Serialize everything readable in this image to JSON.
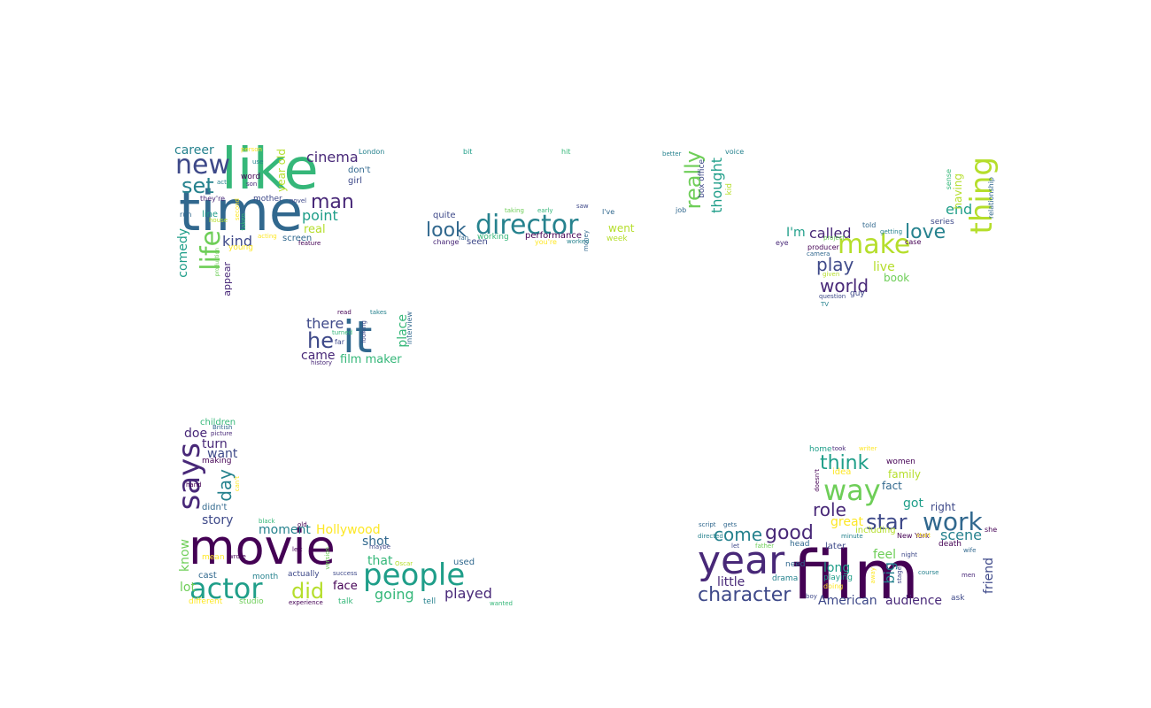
{
  "palette": [
    "#440154",
    "#482878",
    "#3e4989",
    "#31688e",
    "#26828e",
    "#1f9e89",
    "#35b779",
    "#6ece58",
    "#b5de2b",
    "#fde725"
  ],
  "words": [
    {
      "text": "time",
      "color": "#31688e"
    },
    {
      "text": "like",
      "color": "#35b779"
    },
    {
      "text": "new",
      "color": "#3e4989"
    },
    {
      "text": "set",
      "color": "#26828e"
    },
    {
      "text": "career",
      "color": "#26828e"
    },
    {
      "text": "man",
      "color": "#482878"
    },
    {
      "text": "cinema",
      "color": "#482878"
    },
    {
      "text": "point",
      "color": "#1f9e89"
    },
    {
      "text": "real",
      "color": "#b5de2b"
    },
    {
      "text": "kind",
      "color": "#3e4989"
    },
    {
      "text": "life",
      "color": "#6ece58"
    },
    {
      "text": "comedy",
      "color": "#1f9e89"
    },
    {
      "text": "screen",
      "color": "#31688e"
    },
    {
      "text": "year old",
      "color": "#b5de2b"
    },
    {
      "text": "don't",
      "color": "#31688e"
    },
    {
      "text": "girl",
      "color": "#3e4989"
    },
    {
      "text": "word",
      "color": "#440154"
    },
    {
      "text": "mother",
      "color": "#3e4989"
    },
    {
      "text": "line",
      "color": "#1f9e89"
    },
    {
      "text": "young",
      "color": "#fde725"
    },
    {
      "text": "appear",
      "color": "#482878"
    },
    {
      "text": "London",
      "color": "#26828e"
    },
    {
      "text": "person",
      "color": "#fde725"
    },
    {
      "text": "use",
      "color": "#26828e"
    },
    {
      "text": "act",
      "color": "#26828e"
    },
    {
      "text": "son",
      "color": "#482878"
    },
    {
      "text": "they're",
      "color": "#482878"
    },
    {
      "text": "run",
      "color": "#31688e"
    },
    {
      "text": "house",
      "color": "#b5de2b"
    },
    {
      "text": "second",
      "color": "#fde725"
    },
    {
      "text": "taken",
      "color": "#35b779"
    },
    {
      "text": "novel",
      "color": "#3e4989"
    },
    {
      "text": "acting",
      "color": "#fde725"
    },
    {
      "text": "feature",
      "color": "#440154"
    },
    {
      "text": "production",
      "color": "#6ece58"
    },
    {
      "text": "director",
      "color": "#26828e"
    },
    {
      "text": "look",
      "color": "#31688e"
    },
    {
      "text": "went",
      "color": "#b5de2b"
    },
    {
      "text": "quite",
      "color": "#3e4989"
    },
    {
      "text": "performance",
      "color": "#440154"
    },
    {
      "text": "working",
      "color": "#35b779"
    },
    {
      "text": "seen",
      "color": "#3e4989"
    },
    {
      "text": "week",
      "color": "#b5de2b"
    },
    {
      "text": "change",
      "color": "#482878"
    },
    {
      "text": "you're",
      "color": "#fde725"
    },
    {
      "text": "worked",
      "color": "#26828e"
    },
    {
      "text": "money",
      "color": "#31688e"
    },
    {
      "text": "taking",
      "color": "#6ece58"
    },
    {
      "text": "early",
      "color": "#35b779"
    },
    {
      "text": "saw",
      "color": "#3e4989"
    },
    {
      "text": "I've",
      "color": "#31688e"
    },
    {
      "text": "fan",
      "color": "#31688e"
    },
    {
      "text": "bit",
      "color": "#1f9e89"
    },
    {
      "text": "hit",
      "color": "#35b779"
    },
    {
      "text": "really",
      "color": "#6ece58"
    },
    {
      "text": "thought",
      "color": "#1f9e89"
    },
    {
      "text": "box office",
      "color": "#3e4989"
    },
    {
      "text": "kid",
      "color": "#b5de2b"
    },
    {
      "text": "job",
      "color": "#31688e"
    },
    {
      "text": "better",
      "color": "#26828e"
    },
    {
      "text": "voice",
      "color": "#26828e"
    },
    {
      "text": "thing",
      "color": "#b5de2b"
    },
    {
      "text": "make",
      "color": "#b5de2b"
    },
    {
      "text": "love",
      "color": "#26828e"
    },
    {
      "text": "end",
      "color": "#1f9e89"
    },
    {
      "text": "having",
      "color": "#b5de2b"
    },
    {
      "text": "sense",
      "color": "#35b779"
    },
    {
      "text": "relationship",
      "color": "#31688e"
    },
    {
      "text": "I'm",
      "color": "#1f9e89"
    },
    {
      "text": "called",
      "color": "#482878"
    },
    {
      "text": "play",
      "color": "#3e4989"
    },
    {
      "text": "world",
      "color": "#482878"
    },
    {
      "text": "live",
      "color": "#b5de2b"
    },
    {
      "text": "book",
      "color": "#6ece58"
    },
    {
      "text": "told",
      "color": "#31688e"
    },
    {
      "text": "getting",
      "color": "#26828e"
    },
    {
      "text": "series",
      "color": "#3e4989"
    },
    {
      "text": "project",
      "color": "#6ece58"
    },
    {
      "text": "case",
      "color": "#440154"
    },
    {
      "text": "eye",
      "color": "#482878"
    },
    {
      "text": "producer",
      "color": "#440154"
    },
    {
      "text": "camera",
      "color": "#31688e"
    },
    {
      "text": "given",
      "color": "#b5de2b"
    },
    {
      "text": "question",
      "color": "#3e4989"
    },
    {
      "text": "guy",
      "color": "#3e4989"
    },
    {
      "text": "TV",
      "color": "#26828e"
    },
    {
      "text": "it",
      "color": "#31688e"
    },
    {
      "text": "he",
      "color": "#3e4989"
    },
    {
      "text": "there",
      "color": "#3e4989"
    },
    {
      "text": "came",
      "color": "#482878"
    },
    {
      "text": "film maker",
      "color": "#35b779"
    },
    {
      "text": "place",
      "color": "#35b779"
    },
    {
      "text": "interview",
      "color": "#31688e"
    },
    {
      "text": "read",
      "color": "#440154"
    },
    {
      "text": "takes",
      "color": "#26828e"
    },
    {
      "text": "turned",
      "color": "#35b779"
    },
    {
      "text": "far",
      "color": "#3e4989"
    },
    {
      "text": "looking",
      "color": "#3e4989"
    },
    {
      "text": "history",
      "color": "#482878"
    },
    {
      "text": "says",
      "color": "#482878"
    },
    {
      "text": "movie",
      "color": "#440154"
    },
    {
      "text": "actor",
      "color": "#1f9e89"
    },
    {
      "text": "did",
      "color": "#b5de2b"
    },
    {
      "text": "people",
      "color": "#1f9e89"
    },
    {
      "text": "played",
      "color": "#482878"
    },
    {
      "text": "going",
      "color": "#35b779"
    },
    {
      "text": "that",
      "color": "#35b779"
    },
    {
      "text": "face",
      "color": "#440154"
    },
    {
      "text": "shot",
      "color": "#31688e"
    },
    {
      "text": "Hollywood",
      "color": "#fde725"
    },
    {
      "text": "moment",
      "color": "#26828e"
    },
    {
      "text": "story",
      "color": "#3e4989"
    },
    {
      "text": "day",
      "color": "#26828e"
    },
    {
      "text": "want",
      "color": "#3e4989"
    },
    {
      "text": "turn",
      "color": "#482878"
    },
    {
      "text": "doe",
      "color": "#482878"
    },
    {
      "text": "children",
      "color": "#35b779"
    },
    {
      "text": "British",
      "color": "#31688e"
    },
    {
      "text": "picture",
      "color": "#482878"
    },
    {
      "text": "making",
      "color": "#440154"
    },
    {
      "text": "hand",
      "color": "#440154"
    },
    {
      "text": "can't",
      "color": "#fde725"
    },
    {
      "text": "didn't",
      "color": "#31688e"
    },
    {
      "text": "mean",
      "color": "#fde725"
    },
    {
      "text": "wrote",
      "color": "#440154"
    },
    {
      "text": "black",
      "color": "#35b779"
    },
    {
      "text": "old",
      "color": "#440154"
    },
    {
      "text": "know",
      "color": "#6ece58"
    },
    {
      "text": "cast",
      "color": "#31688e"
    },
    {
      "text": "lot",
      "color": "#6ece58"
    },
    {
      "text": "month",
      "color": "#26828e"
    },
    {
      "text": "actually",
      "color": "#3e4989"
    },
    {
      "text": "left",
      "color": "#440154"
    },
    {
      "text": "version",
      "color": "#6ece58"
    },
    {
      "text": "maybe",
      "color": "#3e4989"
    },
    {
      "text": "success",
      "color": "#3e4989"
    },
    {
      "text": "Oscar",
      "color": "#b5de2b"
    },
    {
      "text": "used",
      "color": "#31688e"
    },
    {
      "text": "tell",
      "color": "#26828e"
    },
    {
      "text": "talk",
      "color": "#35b779"
    },
    {
      "text": "wanted",
      "color": "#35b779"
    },
    {
      "text": "experience",
      "color": "#440154"
    },
    {
      "text": "different",
      "color": "#fde725"
    },
    {
      "text": "studio",
      "color": "#6ece58"
    },
    {
      "text": "film",
      "color": "#440154"
    },
    {
      "text": "year",
      "color": "#482878"
    },
    {
      "text": "way",
      "color": "#6ece58"
    },
    {
      "text": "think",
      "color": "#1f9e89"
    },
    {
      "text": "work",
      "color": "#31688e"
    },
    {
      "text": "star",
      "color": "#3e4989"
    },
    {
      "text": "role",
      "color": "#482878"
    },
    {
      "text": "good",
      "color": "#482878"
    },
    {
      "text": "come",
      "color": "#26828e"
    },
    {
      "text": "great",
      "color": "#fde725"
    },
    {
      "text": "scene",
      "color": "#26828e"
    },
    {
      "text": "character",
      "color": "#3e4989"
    },
    {
      "text": "little",
      "color": "#482878"
    },
    {
      "text": "American",
      "color": "#3e4989"
    },
    {
      "text": "audience",
      "color": "#482878"
    },
    {
      "text": "long",
      "color": "#1f9e89"
    },
    {
      "text": "feel",
      "color": "#6ece58"
    },
    {
      "text": "big",
      "color": "#26828e"
    },
    {
      "text": "got",
      "color": "#1f9e89"
    },
    {
      "text": "right",
      "color": "#3e4989"
    },
    {
      "text": "friend",
      "color": "#3e4989"
    },
    {
      "text": "family",
      "color": "#b5de2b"
    },
    {
      "text": "fact",
      "color": "#31688e"
    },
    {
      "text": "idea",
      "color": "#fde725"
    },
    {
      "text": "women",
      "color": "#440154"
    },
    {
      "text": "home",
      "color": "#1f9e89"
    },
    {
      "text": "took",
      "color": "#482878"
    },
    {
      "text": "writer",
      "color": "#fde725"
    },
    {
      "text": "doesn't",
      "color": "#440154"
    },
    {
      "text": "including",
      "color": "#b5de2b"
    },
    {
      "text": "New York",
      "color": "#440154"
    },
    {
      "text": "start",
      "color": "#fde725"
    },
    {
      "text": "later",
      "color": "#3e4989"
    },
    {
      "text": "head",
      "color": "#31688e"
    },
    {
      "text": "need",
      "color": "#31688e"
    },
    {
      "text": "drama",
      "color": "#26828e"
    },
    {
      "text": "playing",
      "color": "#1f9e89"
    },
    {
      "text": "doing",
      "color": "#fde725"
    },
    {
      "text": "away",
      "color": "#fde725"
    },
    {
      "text": "stage",
      "color": "#3e4989"
    },
    {
      "text": "death",
      "color": "#440154"
    },
    {
      "text": "course",
      "color": "#26828e"
    },
    {
      "text": "night",
      "color": "#3e4989"
    },
    {
      "text": "wife",
      "color": "#31688e"
    },
    {
      "text": "she",
      "color": "#440154"
    },
    {
      "text": "men",
      "color": "#482878"
    },
    {
      "text": "ask",
      "color": "#3e4989"
    },
    {
      "text": "script",
      "color": "#31688e"
    },
    {
      "text": "gets",
      "color": "#31688e"
    },
    {
      "text": "directed",
      "color": "#26828e"
    },
    {
      "text": "let",
      "color": "#3e4989"
    },
    {
      "text": "father",
      "color": "#6ece58"
    },
    {
      "text": "minute",
      "color": "#26828e"
    },
    {
      "text": "boy",
      "color": "#3e4989"
    },
    {
      "text": "age",
      "color": "#26828e"
    }
  ]
}
